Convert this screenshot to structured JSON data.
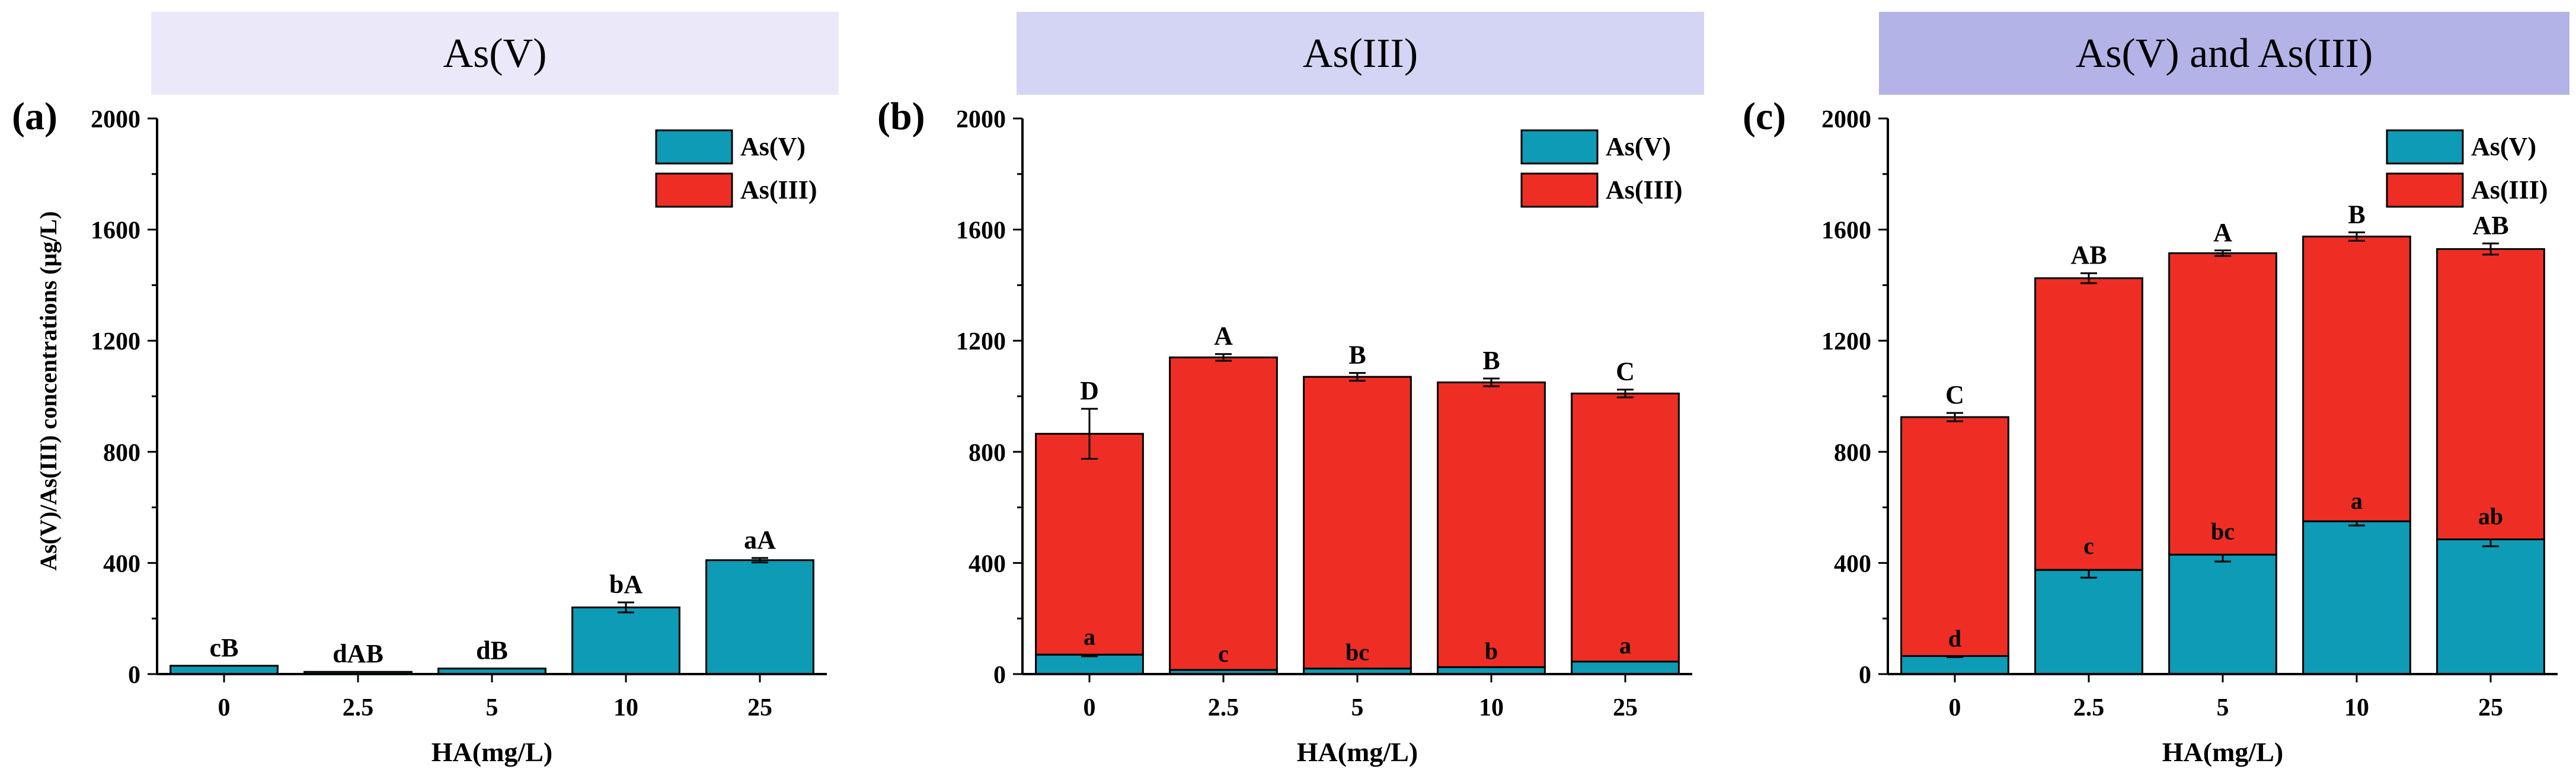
{
  "colors": {
    "as_v": "#0e9bb5",
    "as_iii": "#ee2e24",
    "header_a": "#ebe9f9",
    "header_b": "#d4d4f4",
    "header_c": "#b3b3e8",
    "axis": "#000000"
  },
  "shared": {
    "ylabel": "As(V)/As(III) concentrations (μg/L)",
    "xlabel": "HA(mg/L)",
    "legend": [
      "As(V)",
      "As(III)"
    ]
  },
  "chart_data": [
    {
      "panel": "(a)",
      "header": "As(V)",
      "type": "bar",
      "categories": [
        "0",
        "2.5",
        "5",
        "10",
        "25"
      ],
      "series": [
        {
          "name": "As(V)",
          "values": [
            30,
            8,
            20,
            240,
            410
          ],
          "errors": [
            0,
            0,
            0,
            18,
            8
          ]
        }
      ],
      "stacked": false,
      "top_labels": [
        "cB",
        "dAB",
        "dB",
        "bA",
        "aA"
      ],
      "inner_labels": [],
      "xlabel": "HA(mg/L)",
      "ylabel": "As(V)/As(III) concentrations (μg/L)",
      "ylim": [
        0,
        2000
      ],
      "yticks": [
        "0",
        "400",
        "800",
        "1200",
        "1600",
        "2000"
      ],
      "legend": "top-right"
    },
    {
      "panel": "(b)",
      "header": "As(III)",
      "type": "bar",
      "categories": [
        "0",
        "2.5",
        "5",
        "10",
        "25"
      ],
      "series": [
        {
          "name": "As(V)",
          "values": [
            70,
            15,
            20,
            25,
            45
          ],
          "errors": [
            6,
            0,
            0,
            0,
            0
          ]
        },
        {
          "name": "As(III)",
          "values": [
            795,
            1125,
            1050,
            1025,
            965
          ],
          "errors": [
            90,
            12,
            14,
            14,
            14
          ]
        }
      ],
      "stacked": true,
      "top_labels": [
        "D",
        "A",
        "B",
        "B",
        "C"
      ],
      "inner_labels": [
        "a",
        "c",
        "bc",
        "b",
        "a"
      ],
      "xlabel": "HA(mg/L)",
      "ylim": [
        0,
        2000
      ],
      "yticks": [
        "0",
        "400",
        "800",
        "1200",
        "1600",
        "2000"
      ],
      "legend": "top-right"
    },
    {
      "panel": "(c)",
      "header": "As(V) and As(III)",
      "type": "bar",
      "categories": [
        "0",
        "2.5",
        "5",
        "10",
        "25"
      ],
      "series": [
        {
          "name": "As(V)",
          "values": [
            65,
            375,
            430,
            550,
            485
          ],
          "errors": [
            4,
            28,
            25,
            15,
            25
          ]
        },
        {
          "name": "As(III)",
          "values": [
            860,
            1050,
            1085,
            1025,
            1045
          ],
          "errors": [
            15,
            18,
            10,
            15,
            20
          ]
        }
      ],
      "stacked": true,
      "top_labels": [
        "C",
        "AB",
        "A",
        "B",
        "AB"
      ],
      "inner_labels": [
        "d",
        "c",
        "bc",
        "a",
        "ab"
      ],
      "xlabel": "HA(mg/L)",
      "ylim": [
        0,
        2000
      ],
      "yticks": [
        "0",
        "400",
        "800",
        "1200",
        "1600",
        "2000"
      ],
      "legend": "top-right"
    }
  ]
}
